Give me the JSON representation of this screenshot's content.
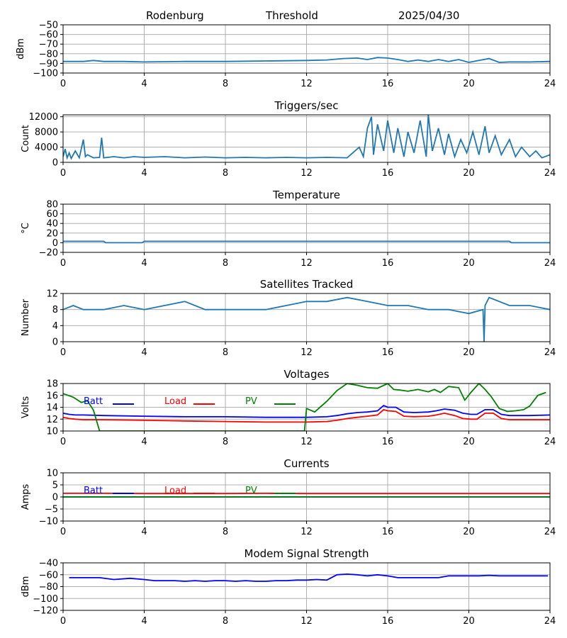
{
  "header": {
    "station": "Rodenburg",
    "mode": "Threshold",
    "date": "2025/04/30"
  },
  "colors": {
    "default": "#1f77b4",
    "batt": "#0000ff",
    "load": "#ff0000",
    "pv": "#008000",
    "grid": "#b0b0b0"
  },
  "chart_data": [
    {
      "type": "line",
      "title": "",
      "xlabel": "",
      "ylabel": "dBm",
      "xlim": [
        0,
        24
      ],
      "ylim": [
        -100,
        -50
      ],
      "xticks": [
        0,
        4,
        8,
        12,
        16,
        20,
        24
      ],
      "yticks": [
        -100,
        -90,
        -80,
        -70,
        -60,
        -50
      ],
      "x_tick_labels": [
        "0",
        "4",
        "8",
        "12",
        "16",
        "20",
        "24"
      ],
      "y_tick_labels": [
        "−100",
        "−90",
        "−80",
        "−70",
        "−60",
        "−50"
      ],
      "grid": true,
      "series": [
        {
          "color": "#1f77b4",
          "x": [
            0,
            1,
            1.5,
            2,
            3,
            4,
            6,
            8,
            10,
            12,
            13,
            13.8,
            14.5,
            15,
            15.5,
            16,
            16.5,
            17,
            17.5,
            18,
            18.5,
            19,
            19.5,
            20,
            20.5,
            21,
            21.5,
            22,
            23,
            24
          ],
          "y": [
            -88,
            -88,
            -87,
            -88,
            -88,
            -88.5,
            -88,
            -88,
            -87.5,
            -87,
            -86.5,
            -85,
            -84.5,
            -86,
            -84,
            -84.5,
            -86,
            -88,
            -86.5,
            -88,
            -86,
            -88,
            -86,
            -89,
            -87,
            -85,
            -89,
            -88.5,
            -88.5,
            -88
          ]
        }
      ]
    },
    {
      "type": "line",
      "title": "Triggers/sec",
      "xlabel": "",
      "ylabel": "Count",
      "xlim": [
        0,
        24
      ],
      "ylim": [
        0,
        12500
      ],
      "xticks": [
        0,
        4,
        8,
        12,
        16,
        20,
        24
      ],
      "yticks": [
        0,
        4000,
        8000,
        12000
      ],
      "x_tick_labels": [
        "0",
        "4",
        "8",
        "12",
        "16",
        "20",
        "24"
      ],
      "y_tick_labels": [
        "0",
        "4000",
        "8000",
        "12000"
      ],
      "grid": true,
      "series": [
        {
          "color": "#1f77b4",
          "x": [
            0,
            0.1,
            0.2,
            0.3,
            0.4,
            0.6,
            0.8,
            1.0,
            1.1,
            1.2,
            1.5,
            1.8,
            1.9,
            2.0,
            2.5,
            3.0,
            3.5,
            4.0,
            5.0,
            6.0,
            7.0,
            8.0,
            9.0,
            10.0,
            11.0,
            12.0,
            13.0,
            14.0,
            14.6,
            14.8,
            15.0,
            15.2,
            15.3,
            15.5,
            15.8,
            16.0,
            16.3,
            16.5,
            16.8,
            17.0,
            17.3,
            17.6,
            17.9,
            18.0,
            18.2,
            18.5,
            18.8,
            19.0,
            19.3,
            19.6,
            19.9,
            20.2,
            20.5,
            20.8,
            21.0,
            21.3,
            21.6,
            22.0,
            22.3,
            22.6,
            23.0,
            23.3,
            23.6,
            24.0
          ],
          "y": [
            1500,
            3500,
            1200,
            2500,
            1000,
            3000,
            1200,
            6000,
            1500,
            2000,
            1200,
            1300,
            6500,
            1200,
            1500,
            1200,
            1500,
            1300,
            1500,
            1200,
            1400,
            1200,
            1300,
            1200,
            1300,
            1200,
            1300,
            1200,
            4000,
            1500,
            9000,
            12000,
            2000,
            10000,
            3000,
            11000,
            2500,
            9000,
            1500,
            8000,
            2500,
            11000,
            1500,
            12500,
            3000,
            9000,
            2000,
            7500,
            1500,
            6000,
            2500,
            8000,
            2000,
            9500,
            2500,
            7000,
            2000,
            6000,
            1500,
            4000,
            1500,
            3000,
            1200,
            2000
          ]
        }
      ]
    },
    {
      "type": "line",
      "title": "Temperature",
      "xlabel": "",
      "ylabel": "°C",
      "xlim": [
        0,
        24
      ],
      "ylim": [
        -20,
        80
      ],
      "xticks": [
        0,
        4,
        8,
        12,
        16,
        20,
        24
      ],
      "yticks": [
        -20,
        0,
        20,
        40,
        60,
        80
      ],
      "x_tick_labels": [
        "0",
        "4",
        "8",
        "12",
        "16",
        "20",
        "24"
      ],
      "y_tick_labels": [
        "−20",
        "0",
        "20",
        "40",
        "60",
        "80"
      ],
      "grid": true,
      "series": [
        {
          "color": "#1f77b4",
          "x": [
            0,
            2,
            2.1,
            3.9,
            4,
            22,
            22.1,
            24
          ],
          "y": [
            3,
            3,
            0,
            0,
            3,
            3,
            0,
            0
          ]
        }
      ]
    },
    {
      "type": "line",
      "title": "Satellites Tracked",
      "xlabel": "",
      "ylabel": "Number",
      "xlim": [
        0,
        24
      ],
      "ylim": [
        0,
        12
      ],
      "xticks": [
        0,
        4,
        8,
        12,
        16,
        20,
        24
      ],
      "yticks": [
        0,
        4,
        8,
        12
      ],
      "x_tick_labels": [
        "0",
        "4",
        "8",
        "12",
        "16",
        "20",
        "24"
      ],
      "y_tick_labels": [
        "0",
        "4",
        "8",
        "12"
      ],
      "grid": true,
      "series": [
        {
          "color": "#1f77b4",
          "x": [
            0,
            0.5,
            1,
            2,
            3,
            4,
            5,
            6,
            7,
            8,
            9,
            10,
            11,
            12,
            13,
            14,
            15,
            16,
            17,
            18,
            19,
            20,
            20.7,
            20.75,
            20.8,
            21,
            22,
            23,
            24
          ],
          "y": [
            8,
            9,
            8,
            8,
            9,
            8,
            9,
            10,
            8,
            8,
            8,
            8,
            9,
            10,
            10,
            11,
            10,
            9,
            9,
            8,
            8,
            7,
            8,
            0,
            9,
            11,
            9,
            9,
            8
          ]
        }
      ]
    },
    {
      "type": "line",
      "title": "Voltages",
      "xlabel": "",
      "ylabel": "Volts",
      "xlim": [
        0,
        24
      ],
      "ylim": [
        10,
        18
      ],
      "xticks": [
        0,
        4,
        8,
        12,
        16,
        20,
        24
      ],
      "yticks": [
        10,
        12,
        14,
        16,
        18
      ],
      "x_tick_labels": [
        "0",
        "4",
        "8",
        "12",
        "16",
        "20",
        "24"
      ],
      "y_tick_labels": [
        "10",
        "12",
        "14",
        "16",
        "18"
      ],
      "grid": true,
      "legend": "top-left",
      "series": [
        {
          "name": "Batt",
          "color": "#0000ff",
          "x": [
            0,
            0.3,
            0.6,
            1,
            2,
            4,
            6,
            8,
            10,
            11,
            12,
            13,
            13.5,
            14,
            14.5,
            15,
            15.5,
            15.8,
            16,
            16.4,
            16.8,
            17.3,
            18,
            18.4,
            18.8,
            19.3,
            19.7,
            20.1,
            20.4,
            20.8,
            21.2,
            21.6,
            22,
            23,
            24
          ],
          "y": [
            13.0,
            12.8,
            12.7,
            12.7,
            12.6,
            12.5,
            12.4,
            12.4,
            12.3,
            12.3,
            12.3,
            12.4,
            12.6,
            12.9,
            13.1,
            13.2,
            13.4,
            14.3,
            14.0,
            14.0,
            13.2,
            13.1,
            13.2,
            13.4,
            13.7,
            13.5,
            13.0,
            12.8,
            12.8,
            13.6,
            13.6,
            12.8,
            12.6,
            12.6,
            12.7
          ]
        },
        {
          "name": "Load",
          "color": "#ff0000",
          "x": [
            0,
            0.3,
            0.6,
            1,
            2,
            4,
            6,
            8,
            10,
            11,
            12,
            13,
            13.5,
            14,
            14.5,
            15,
            15.5,
            15.8,
            16,
            16.4,
            16.8,
            17.3,
            18,
            18.4,
            18.8,
            19.3,
            19.7,
            20.1,
            20.4,
            20.8,
            21.2,
            21.6,
            22,
            23,
            24
          ],
          "y": [
            12.3,
            12.1,
            12.0,
            11.9,
            11.9,
            11.8,
            11.7,
            11.6,
            11.5,
            11.5,
            11.5,
            11.6,
            11.8,
            12.1,
            12.3,
            12.5,
            12.7,
            13.6,
            13.4,
            13.3,
            12.5,
            12.4,
            12.5,
            12.7,
            13.0,
            12.6,
            12.1,
            12.0,
            12.0,
            13.0,
            13.0,
            12.1,
            11.9,
            11.9,
            11.9
          ]
        },
        {
          "name": "PV",
          "color": "#008000",
          "x": [
            0,
            0.5,
            0.9,
            1.2,
            1.5,
            1.8,
            11.9,
            12.0,
            12.4,
            13.0,
            13.5,
            14.0,
            14.5,
            15.0,
            15.5,
            16.0,
            16.3,
            16.6,
            17.0,
            17.5,
            18.0,
            18.3,
            18.6,
            19.0,
            19.5,
            19.8,
            20.1,
            20.5,
            20.8,
            21.1,
            21.5,
            21.9,
            22.3,
            22.7,
            23.0,
            23.4,
            23.8
          ],
          "y": [
            16.3,
            15.7,
            14.8,
            15.1,
            13.5,
            10.0,
            10.0,
            13.8,
            13.2,
            15.0,
            16.8,
            18.0,
            17.7,
            17.3,
            17.2,
            18.0,
            17.0,
            16.9,
            16.7,
            17.0,
            16.6,
            17.0,
            16.5,
            17.5,
            17.3,
            15.2,
            16.5,
            18.0,
            17.0,
            15.8,
            13.8,
            13.3,
            13.4,
            13.6,
            14.2,
            16.0,
            16.5
          ]
        }
      ]
    },
    {
      "type": "line",
      "title": "Currents",
      "xlabel": "",
      "ylabel": "Amps",
      "xlim": [
        0,
        24
      ],
      "ylim": [
        -10,
        10
      ],
      "xticks": [
        0,
        4,
        8,
        12,
        16,
        20,
        24
      ],
      "yticks": [
        -10,
        -5,
        0,
        5,
        10
      ],
      "x_tick_labels": [
        "0",
        "4",
        "8",
        "12",
        "16",
        "20",
        "24"
      ],
      "y_tick_labels": [
        "−10",
        "−5",
        "0",
        "5",
        "10"
      ],
      "grid": true,
      "legend": "top-left",
      "series": [
        {
          "name": "Batt",
          "color": "#0000ff",
          "x": [
            0,
            24
          ],
          "y": [
            0,
            0
          ]
        },
        {
          "name": "Load",
          "color": "#ff0000",
          "x": [
            0,
            2,
            4,
            8,
            10,
            12,
            16,
            20,
            24
          ],
          "y": [
            1.5,
            1.5,
            1.4,
            1.4,
            1.5,
            1.4,
            1.4,
            1.4,
            1.4
          ]
        },
        {
          "name": "PV",
          "color": "#008000",
          "x": [
            0,
            24
          ],
          "y": [
            0,
            0
          ]
        }
      ]
    },
    {
      "type": "line",
      "title": "Modem Signal Strength",
      "xlabel": "",
      "ylabel": "dBm",
      "xlim": [
        0,
        24
      ],
      "ylim": [
        -120,
        -40
      ],
      "xticks": [
        0,
        4,
        8,
        12,
        16,
        20,
        24
      ],
      "yticks": [
        -120,
        -100,
        -80,
        -60,
        -40
      ],
      "x_tick_labels": [
        "0",
        "4",
        "8",
        "12",
        "16",
        "20",
        "24"
      ],
      "y_tick_labels": [
        "−120",
        "−100",
        "−80",
        "−60",
        "−40"
      ],
      "grid": true,
      "series": [
        {
          "color": "#0000ff",
          "x": [
            0.3,
            1.3,
            1.8,
            2.5,
            3.3,
            4,
            4.5,
            5,
            5.5,
            6,
            6.5,
            7,
            7.5,
            8,
            8.5,
            9,
            9.5,
            10,
            10.5,
            11,
            11.5,
            12,
            12.5,
            13,
            13.5,
            14,
            14.5,
            15,
            15.5,
            16,
            16.5,
            17,
            17.5,
            18,
            18.5,
            19,
            19.5,
            20,
            20.5,
            21,
            21.5,
            22,
            22.5,
            23,
            23.5,
            23.9
          ],
          "y": [
            -65,
            -65,
            -65,
            -68,
            -66,
            -68,
            -70,
            -70,
            -70,
            -71,
            -70,
            -71,
            -70,
            -70,
            -71,
            -70,
            -71,
            -71,
            -70,
            -70,
            -69,
            -69,
            -68,
            -69,
            -60,
            -59,
            -60,
            -62,
            -60,
            -62,
            -65,
            -65,
            -65,
            -65,
            -65,
            -62,
            -62,
            -62,
            -62,
            -61,
            -62,
            -62,
            -62,
            -62,
            -62,
            -62
          ]
        }
      ]
    }
  ]
}
